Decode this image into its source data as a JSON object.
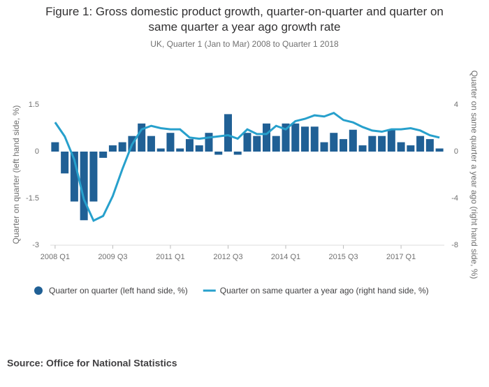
{
  "chart_data": {
    "type": "bar",
    "title": "Figure 1: Gross domestic product growth, quarter-on-quarter and quarter on same quarter a year ago growth rate",
    "subtitle": "UK, Quarter 1 (Jan to Mar) 2008 to Quarter 1 2018",
    "ylabel": "Quarter on quarter (left hand side, %)",
    "y2label": "Quarter on same quarter a year ago (right hand side, %)",
    "source": "Source: Office for National Statistics",
    "categories": [
      "2008 Q1",
      null,
      null,
      null,
      null,
      null,
      "2009 Q3",
      null,
      null,
      null,
      null,
      null,
      "2011 Q1",
      null,
      null,
      null,
      null,
      null,
      "2012 Q3",
      null,
      null,
      null,
      null,
      null,
      "2014 Q1",
      null,
      null,
      null,
      null,
      null,
      "2015 Q3",
      null,
      null,
      null,
      null,
      null,
      "2017 Q1",
      null,
      null,
      null,
      null
    ],
    "ylim": [
      -3,
      1.5
    ],
    "yticks": [
      -3,
      -1.5,
      0,
      1.5
    ],
    "y2lim": [
      -8,
      4
    ],
    "y2ticks": [
      -8,
      -4,
      0,
      4
    ],
    "grid": false,
    "series": [
      {
        "name": "Quarter on quarter (left hand side, %)",
        "type": "bar",
        "color": "#206095",
        "values": [
          0.3,
          -0.7,
          -1.6,
          -2.2,
          -1.6,
          -0.2,
          0.2,
          0.3,
          0.5,
          0.9,
          0.5,
          0.1,
          0.6,
          0.1,
          0.4,
          0.2,
          0.6,
          -0.1,
          1.2,
          -0.1,
          0.6,
          0.5,
          0.9,
          0.5,
          0.9,
          0.9,
          0.8,
          0.8,
          0.3,
          0.6,
          0.4,
          0.7,
          0.2,
          0.5,
          0.5,
          0.7,
          0.3,
          0.2,
          0.5,
          0.4,
          0.1
        ]
      },
      {
        "name": "Quarter on same quarter a year ago (right hand side, %)",
        "type": "line",
        "axis": "y2",
        "color": "#27a0cc",
        "values": [
          2.5,
          1.3,
          -0.7,
          -4.1,
          -5.9,
          -5.5,
          -3.8,
          -1.5,
          0.6,
          1.9,
          2.2,
          2.0,
          1.9,
          1.9,
          1.2,
          1.1,
          1.2,
          1.3,
          1.4,
          1.1,
          1.9,
          1.5,
          1.5,
          2.2,
          1.9,
          2.6,
          2.8,
          3.1,
          3.0,
          3.3,
          2.7,
          2.5,
          2.1,
          1.8,
          1.7,
          1.9,
          1.9,
          2.0,
          1.8,
          1.4,
          1.2
        ]
      }
    ]
  }
}
